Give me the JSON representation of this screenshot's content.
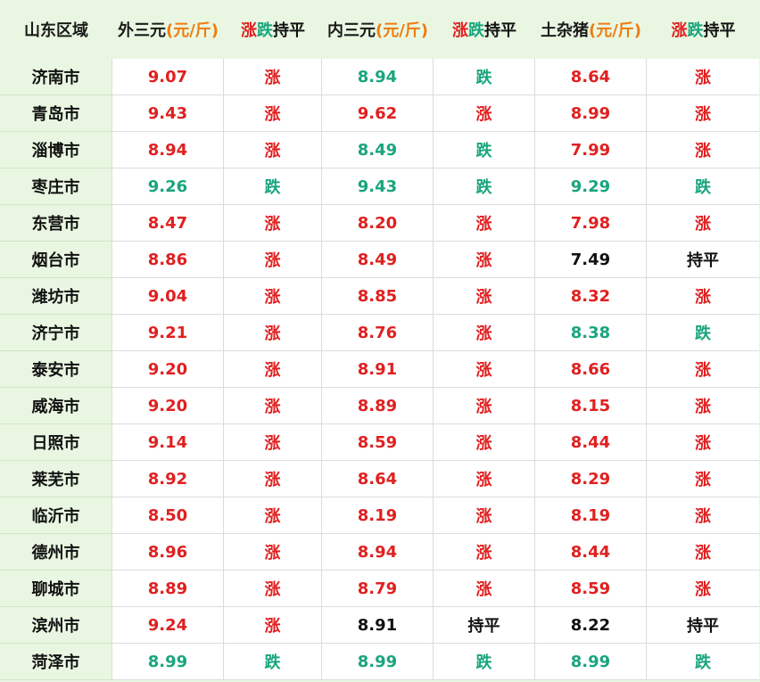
{
  "header": {
    "region": "山东区域",
    "wai_price": "外三元",
    "nei_price": "内三元",
    "tu_price": "土杂猪",
    "unit": "(元/斤)",
    "trend_rise": "涨",
    "trend_fall": "跌",
    "trend_flat": "持平"
  },
  "colors": {
    "rise": "#e02020",
    "fall": "#19a57e",
    "flat": "#111111",
    "unit": "#f07b0f",
    "region_bg": "#e9f7e2"
  },
  "rows": [
    {
      "region": "济南市",
      "wai": "9.07",
      "wai_t": "涨",
      "nei": "8.94",
      "nei_t": "跌",
      "tu": "8.64",
      "tu_t": "涨"
    },
    {
      "region": "青岛市",
      "wai": "9.43",
      "wai_t": "涨",
      "nei": "9.62",
      "nei_t": "涨",
      "tu": "8.99",
      "tu_t": "涨"
    },
    {
      "region": "淄博市",
      "wai": "8.94",
      "wai_t": "涨",
      "nei": "8.49",
      "nei_t": "跌",
      "tu": "7.99",
      "tu_t": "涨"
    },
    {
      "region": "枣庄市",
      "wai": "9.26",
      "wai_t": "跌",
      "nei": "9.43",
      "nei_t": "跌",
      "tu": "9.29",
      "tu_t": "跌"
    },
    {
      "region": "东营市",
      "wai": "8.47",
      "wai_t": "涨",
      "nei": "8.20",
      "nei_t": "涨",
      "tu": "7.98",
      "tu_t": "涨"
    },
    {
      "region": "烟台市",
      "wai": "8.86",
      "wai_t": "涨",
      "nei": "8.49",
      "nei_t": "涨",
      "tu": "7.49",
      "tu_t": "持平"
    },
    {
      "region": "潍坊市",
      "wai": "9.04",
      "wai_t": "涨",
      "nei": "8.85",
      "nei_t": "涨",
      "tu": "8.32",
      "tu_t": "涨"
    },
    {
      "region": "济宁市",
      "wai": "9.21",
      "wai_t": "涨",
      "nei": "8.76",
      "nei_t": "涨",
      "tu": "8.38",
      "tu_t": "跌"
    },
    {
      "region": "泰安市",
      "wai": "9.20",
      "wai_t": "涨",
      "nei": "8.91",
      "nei_t": "涨",
      "tu": "8.66",
      "tu_t": "涨"
    },
    {
      "region": "威海市",
      "wai": "9.20",
      "wai_t": "涨",
      "nei": "8.89",
      "nei_t": "涨",
      "tu": "8.15",
      "tu_t": "涨"
    },
    {
      "region": "日照市",
      "wai": "9.14",
      "wai_t": "涨",
      "nei": "8.59",
      "nei_t": "涨",
      "tu": "8.44",
      "tu_t": "涨"
    },
    {
      "region": "莱芜市",
      "wai": "8.92",
      "wai_t": "涨",
      "nei": "8.64",
      "nei_t": "涨",
      "tu": "8.29",
      "tu_t": "涨"
    },
    {
      "region": "临沂市",
      "wai": "8.50",
      "wai_t": "涨",
      "nei": "8.19",
      "nei_t": "涨",
      "tu": "8.19",
      "tu_t": "涨"
    },
    {
      "region": "德州市",
      "wai": "8.96",
      "wai_t": "涨",
      "nei": "8.94",
      "nei_t": "涨",
      "tu": "8.44",
      "tu_t": "涨"
    },
    {
      "region": "聊城市",
      "wai": "8.89",
      "wai_t": "涨",
      "nei": "8.79",
      "nei_t": "涨",
      "tu": "8.59",
      "tu_t": "涨"
    },
    {
      "region": "滨州市",
      "wai": "9.24",
      "wai_t": "涨",
      "nei": "8.91",
      "nei_t": "持平",
      "tu": "8.22",
      "tu_t": "持平"
    },
    {
      "region": "菏泽市",
      "wai": "8.99",
      "wai_t": "跌",
      "nei": "8.99",
      "nei_t": "跌",
      "tu": "8.99",
      "tu_t": "跌"
    }
  ]
}
